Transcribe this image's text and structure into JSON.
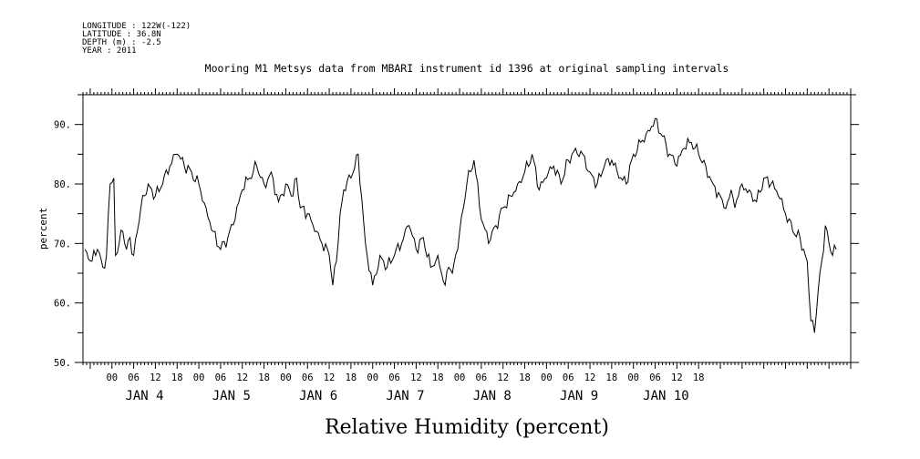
{
  "header": {
    "meta_lines": [
      "LONGITUDE : 122W(-122)",
      "LATITUDE : 36.8N",
      "DEPTH (m) : -2.5",
      "YEAR : 2011"
    ]
  },
  "chart_data": {
    "type": "line",
    "title": "Mooring M1 Metsys data from MBARI instrument id 1396 at original sampling intervals",
    "xlabel": "Relative Humidity (percent)",
    "ylabel": "percent",
    "ylim": [
      50,
      95
    ],
    "yticks": [
      50,
      60,
      70,
      80,
      90
    ],
    "ytick_labels": [
      "50.",
      "60.",
      "70.",
      "80.",
      "90."
    ],
    "xlim_hours": [
      -8,
      204
    ],
    "hour_tick_labels": [
      "00",
      "06",
      "12",
      "18"
    ],
    "day_labels": [
      "JAN  4",
      "JAN  5",
      "JAN  6",
      "JAN  7",
      "JAN  8",
      "JAN  9",
      "JAN 10"
    ],
    "grid": false,
    "color": "#000000",
    "series": [
      {
        "x_hours": [
          -7.5,
          -5.5,
          -4,
          -2.5,
          -1.5,
          -0.5,
          0.5,
          1,
          2,
          3,
          4,
          5,
          6,
          7,
          8,
          9,
          10,
          12,
          14,
          16,
          18,
          20,
          22,
          24,
          26,
          28,
          30,
          32,
          34,
          36,
          38,
          40,
          42,
          44,
          46,
          48,
          50,
          51,
          52,
          54,
          56,
          58,
          60,
          61,
          62,
          63,
          64,
          66,
          68,
          70,
          72,
          74,
          76,
          78,
          80,
          82,
          84,
          86,
          88,
          90,
          92,
          93,
          94,
          96,
          98,
          100,
          102,
          104,
          106,
          108,
          110,
          112,
          114,
          116,
          118,
          120,
          122,
          124,
          126,
          128,
          130,
          132,
          134,
          136,
          138,
          140,
          142,
          144,
          146,
          148,
          150,
          152,
          154,
          156,
          158,
          160,
          162,
          164,
          166,
          168,
          169,
          170,
          171,
          172,
          173,
          174,
          176,
          178,
          180,
          182,
          184,
          186,
          188,
          190,
          192,
          193,
          194,
          195,
          196,
          197,
          198,
          199,
          200
        ],
        "y": [
          69,
          67,
          69,
          66,
          68,
          80,
          81,
          68,
          70,
          72,
          69,
          71,
          68,
          72,
          76,
          78,
          80,
          78,
          80,
          83,
          85,
          83,
          82,
          80,
          76,
          72,
          69,
          71,
          74,
          79,
          81,
          83,
          80,
          82,
          77,
          80,
          78,
          81,
          76,
          75,
          72,
          70,
          68,
          63,
          67,
          75,
          79,
          81,
          85,
          70,
          63,
          68,
          66,
          68,
          70,
          73,
          69,
          71,
          66,
          68,
          63,
          66,
          65,
          72,
          80,
          84,
          74,
          70,
          73,
          76,
          78,
          80,
          82,
          85,
          79,
          81,
          83,
          80,
          84,
          86,
          85,
          82,
          80,
          83,
          84,
          81,
          80,
          85,
          87,
          89,
          91,
          88,
          85,
          83,
          86,
          87,
          85,
          83,
          80,
          78,
          76,
          77,
          79,
          76,
          78,
          80,
          79,
          77,
          81,
          80,
          78,
          75,
          72,
          71,
          67,
          57,
          55,
          62,
          67,
          73,
          70,
          68,
          69
        ]
      }
    ]
  }
}
